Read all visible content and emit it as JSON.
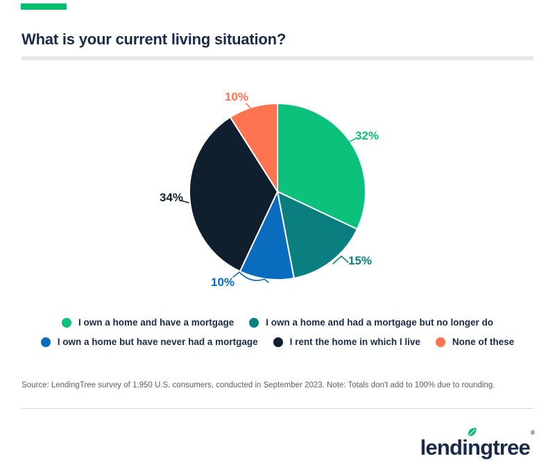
{
  "page": {
    "title": "What is your current living situation?",
    "accent_color": "#00C06D",
    "navy": "#1A2B49",
    "source_note": "Source: LendingTree survey of 1,950 U.S. consumers, conducted in September 2023. Note: Totals don't add to 100% due to rounding.",
    "logo": {
      "text_left": "lendi",
      "text_n": "n",
      "text_right": "gtree",
      "registered_mark": "®",
      "leaf_color": "#00C06D"
    }
  },
  "chart_data": {
    "type": "pie",
    "title": "What is your current living situation?",
    "rotation": "clockwise-from-top",
    "slices": [
      {
        "label": "I own a home and have a mortgage",
        "value_pct": 32,
        "value_label": "32%",
        "color": "#0CC17C"
      },
      {
        "label": "I own a home and had a mortgage but no longer do",
        "value_pct": 15,
        "value_label": "15%",
        "color": "#0B7F80"
      },
      {
        "label": "I own a home but have never had a mortgage",
        "value_pct": 10,
        "value_label": "10%",
        "color": "#0A6CBF"
      },
      {
        "label": "I rent the home in which I live",
        "value_pct": 34,
        "value_label": "34%",
        "color": "#101F2D"
      },
      {
        "label": "None of these",
        "value_pct": 10,
        "value_label": "10%",
        "color": "#FF7450"
      }
    ],
    "legend_rows": [
      [
        0,
        1
      ],
      [
        2,
        3,
        4
      ]
    ],
    "legend_position": "bottom",
    "note": "Totals don't add to 100% due to rounding",
    "slice_border_color": "#FFFFFF"
  }
}
